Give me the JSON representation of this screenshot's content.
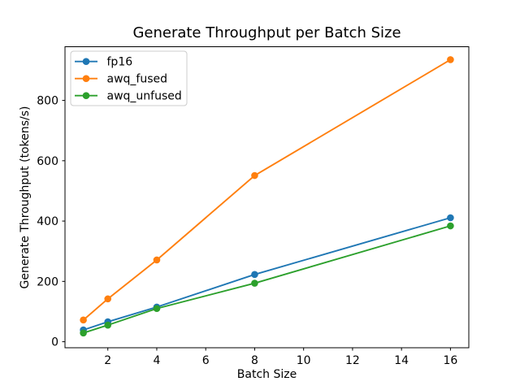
{
  "chart_data": {
    "type": "line",
    "title": "Generate Throughput per Batch Size",
    "xlabel": "Batch Size",
    "ylabel": "Generate Throughput (tokens/s)",
    "x": [
      1,
      2,
      4,
      8,
      16
    ],
    "series": [
      {
        "name": "fp16",
        "color": "#1f77b4",
        "values": [
          39,
          66,
          115,
          223,
          411
        ]
      },
      {
        "name": "awq_fused",
        "color": "#ff7f0e",
        "values": [
          72,
          142,
          271,
          551,
          935
        ]
      },
      {
        "name": "awq_unfused",
        "color": "#2ca02c",
        "values": [
          29,
          55,
          110,
          194,
          384
        ]
      }
    ],
    "xticks": [
      2,
      4,
      6,
      8,
      10,
      12,
      14,
      16
    ],
    "yticks": [
      0,
      200,
      400,
      600,
      800
    ],
    "xlim": [
      0.25,
      16.75
    ],
    "ylim": [
      -20,
      978
    ],
    "grid": false,
    "legend_position": "upper left",
    "marker": "o",
    "colors": {
      "background": "#ffffff",
      "spine": "#000000",
      "text": "#000000",
      "legend_border": "#cccccc",
      "legend_background": "#ffffff"
    }
  }
}
